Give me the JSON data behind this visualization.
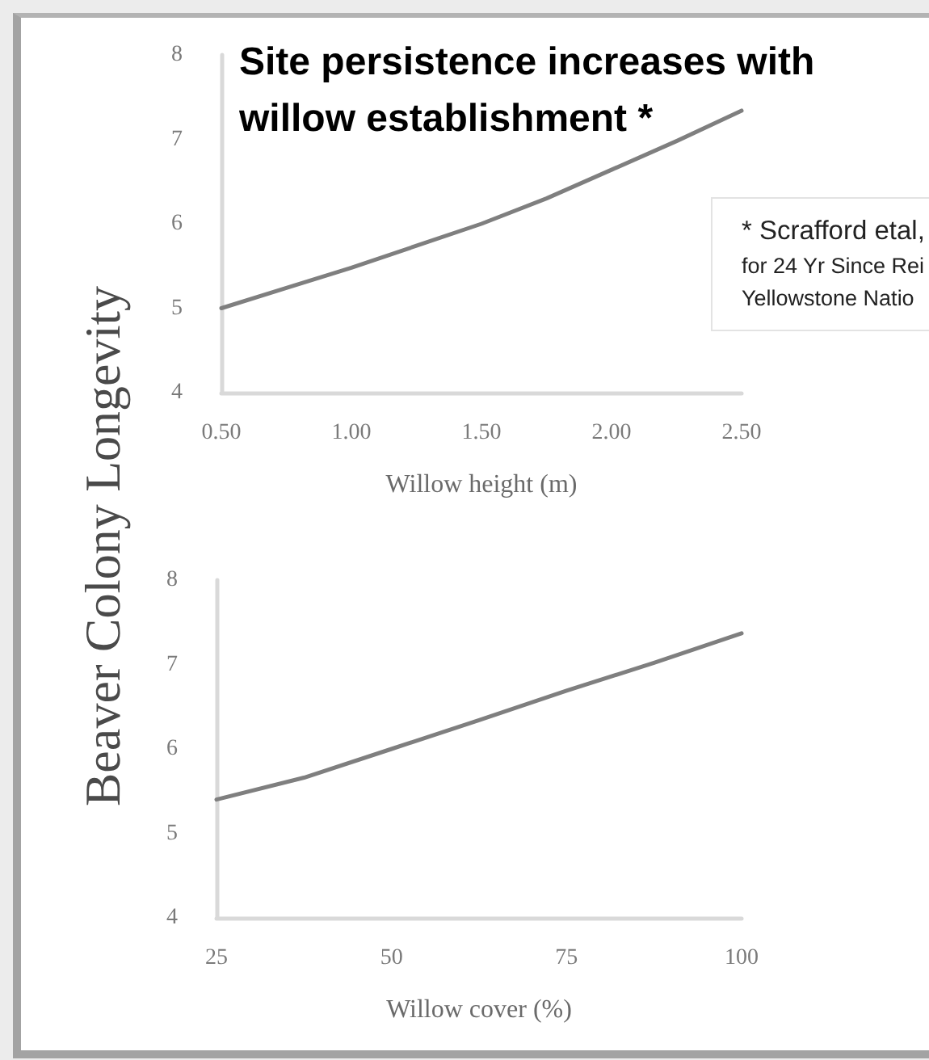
{
  "chart_data": [
    {
      "type": "line",
      "title": "Site persistence increases with willow establishment *",
      "xlabel": "Willow height (m)",
      "ylabel": "Beaver Colony Longevity",
      "annotations": [
        "* Scrafford etal,",
        "for 24 Yr Since Rei",
        "Yellowstone Natio"
      ],
      "x": [
        0.5,
        0.75,
        1,
        1.25,
        1.5,
        1.75,
        2,
        2.25,
        2.5
      ],
      "values": [
        5.0,
        5.24,
        5.48,
        5.74,
        6.0,
        6.3,
        6.64,
        6.98,
        7.34
      ],
      "color": "#7f7f7f",
      "xlim": [
        0.5,
        2.5
      ],
      "xticks": [
        {
          "value": 0.5,
          "label": "0.50"
        },
        {
          "value": 1,
          "label": "1.00"
        },
        {
          "value": 1.5,
          "label": "1.50"
        },
        {
          "value": 2,
          "label": "2.00"
        },
        {
          "value": 2.5,
          "label": "2.50"
        }
      ],
      "ylim": [
        4,
        8
      ],
      "yticks": [
        4,
        5,
        6,
        7,
        8
      ],
      "grid": false,
      "marker": "none",
      "line_style": "solid"
    },
    {
      "type": "line",
      "xlabel": "Willow cover (%)",
      "x": [
        25,
        37.5,
        50,
        62.5,
        75,
        87.5,
        100
      ],
      "values": [
        5.4,
        5.66,
        6.0,
        6.34,
        6.69,
        7.02,
        7.37
      ],
      "color": "#7f7f7f",
      "xlim": [
        25,
        100
      ],
      "xticks": [
        25,
        50,
        75,
        100
      ],
      "ylim": [
        4,
        8
      ],
      "yticks": [
        4,
        5,
        6,
        7,
        8
      ],
      "grid": false,
      "marker": "none",
      "line_style": "solid"
    }
  ]
}
